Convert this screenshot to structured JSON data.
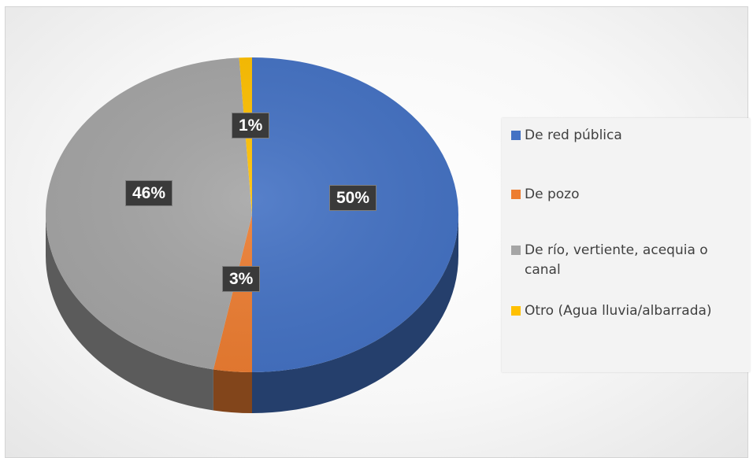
{
  "chart_data": {
    "type": "pie",
    "title": "",
    "three_d": true,
    "legend_position": "right",
    "series": [
      {
        "name": "De red pública",
        "value": 50,
        "label": "50%",
        "color": "#4472C4"
      },
      {
        "name": "De pozo",
        "value": 3,
        "label": "3%",
        "color": "#ED7D31"
      },
      {
        "name": "De río, vertiente, acequia o canal",
        "value": 46,
        "label": "46%",
        "color": "#A5A5A5"
      },
      {
        "name": "Otro (Agua lluvia/albarrada)",
        "value": 1,
        "label": "1%",
        "color": "#FFC000"
      }
    ]
  }
}
